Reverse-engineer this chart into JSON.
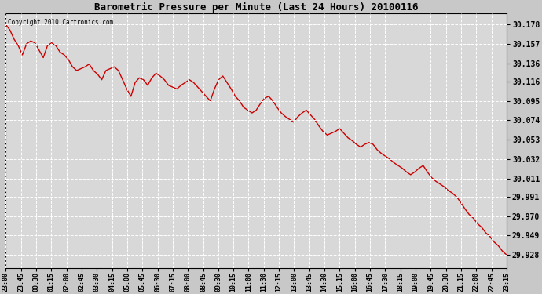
{
  "title": "Barometric Pressure per Minute (Last 24 Hours) 20100116",
  "copyright": "Copyright 2010 Cartronics.com",
  "background_color": "#c8c8c8",
  "plot_bg_color": "#d8d8d8",
  "line_color": "#cc0000",
  "grid_color": "#ffffff",
  "yticks": [
    29.928,
    29.949,
    29.97,
    29.991,
    30.011,
    30.032,
    30.053,
    30.074,
    30.095,
    30.116,
    30.136,
    30.157,
    30.178
  ],
  "ymin": 29.914,
  "ymax": 30.19,
  "xtick_labels": [
    "23:00",
    "23:45",
    "00:30",
    "01:15",
    "02:00",
    "02:45",
    "03:30",
    "04:15",
    "05:00",
    "05:45",
    "06:30",
    "07:15",
    "08:00",
    "08:45",
    "09:30",
    "10:15",
    "11:00",
    "11:30",
    "12:15",
    "13:00",
    "13:45",
    "14:30",
    "15:15",
    "16:00",
    "16:45",
    "17:30",
    "18:15",
    "19:00",
    "19:45",
    "20:30",
    "21:15",
    "22:00",
    "22:45",
    "23:15"
  ],
  "pressure_data": [
    30.178,
    30.172,
    30.162,
    30.155,
    30.145,
    30.157,
    30.16,
    30.158,
    30.15,
    30.142,
    30.155,
    30.158,
    30.155,
    30.148,
    30.145,
    30.14,
    30.132,
    30.128,
    30.13,
    30.132,
    30.135,
    30.128,
    30.124,
    30.118,
    30.128,
    30.13,
    30.132,
    30.128,
    30.118,
    30.108,
    30.1,
    30.115,
    30.12,
    30.118,
    30.112,
    30.12,
    30.125,
    30.122,
    30.118,
    30.112,
    30.11,
    30.108,
    30.112,
    30.115,
    30.118,
    30.115,
    30.11,
    30.105,
    30.1,
    30.095,
    30.108,
    30.118,
    30.122,
    30.115,
    30.108,
    30.1,
    30.095,
    30.088,
    30.085,
    30.082,
    30.085,
    30.092,
    30.098,
    30.1,
    30.095,
    30.088,
    30.082,
    30.078,
    30.075,
    30.072,
    30.078,
    30.082,
    30.085,
    30.08,
    30.075,
    30.068,
    30.062,
    30.058,
    30.06,
    30.062,
    30.065,
    30.06,
    30.055,
    30.052,
    30.048,
    30.045,
    30.048,
    30.05,
    30.048,
    30.042,
    30.038,
    30.035,
    30.032,
    30.028,
    30.025,
    30.022,
    30.018,
    30.015,
    30.018,
    30.022,
    30.025,
    30.018,
    30.012,
    30.008,
    30.005,
    30.002,
    29.998,
    29.995,
    29.991,
    29.985,
    29.978,
    29.972,
    29.968,
    29.962,
    29.958,
    29.952,
    29.948,
    29.942,
    29.938,
    29.932,
    29.928
  ]
}
